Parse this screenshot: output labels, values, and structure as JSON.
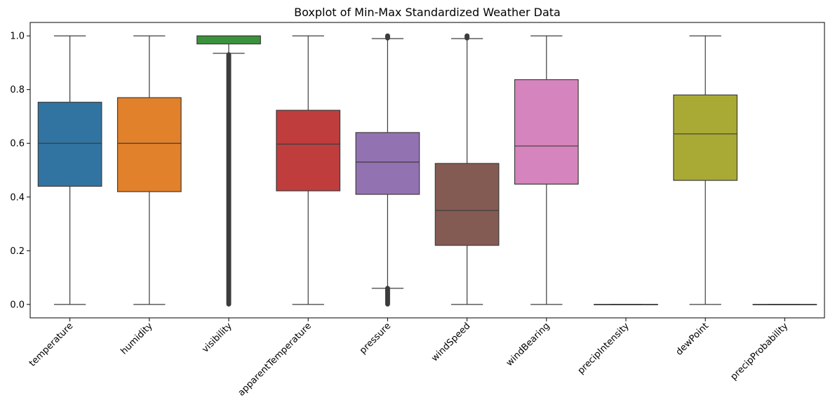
{
  "chart_data": {
    "type": "boxplot",
    "title": "Boxplot of Min-Max Standardized Weather Data",
    "xlabel": "",
    "ylabel": "",
    "ylim": [
      -0.05,
      1.05
    ],
    "yticks": [
      0.0,
      0.2,
      0.4,
      0.6,
      0.8,
      1.0
    ],
    "ytick_labels": [
      "0.0",
      "0.2",
      "0.4",
      "0.6",
      "0.8",
      "1.0"
    ],
    "grid": false,
    "categories": [
      "temperature",
      "humidity",
      "visibility",
      "apparentTemperature",
      "pressure",
      "windSpeed",
      "windBearing",
      "precipIntensity",
      "dewPoint",
      "precipProbability"
    ],
    "boxes": [
      {
        "category": "temperature",
        "color": "#3274a1",
        "whisker_low": 0.0,
        "q1": 0.44,
        "median": 0.6,
        "q3": 0.753,
        "whisker_high": 1.0,
        "fliers": []
      },
      {
        "category": "humidity",
        "color": "#e1812c",
        "whisker_low": 0.0,
        "q1": 0.42,
        "median": 0.6,
        "q3": 0.77,
        "whisker_high": 1.0,
        "fliers": []
      },
      {
        "category": "visibility",
        "color": "#3a923a",
        "whisker_low": 0.935,
        "q1": 0.97,
        "median": 1.0,
        "q3": 1.0,
        "whisker_high": 1.0,
        "flier_range": [
          0.0,
          0.93
        ]
      },
      {
        "category": "apparentTemperature",
        "color": "#c03d3e",
        "whisker_low": 0.0,
        "q1": 0.423,
        "median": 0.597,
        "q3": 0.723,
        "whisker_high": 1.0,
        "fliers": []
      },
      {
        "category": "pressure",
        "color": "#9372b2",
        "whisker_low": 0.06,
        "q1": 0.41,
        "median": 0.53,
        "q3": 0.64,
        "whisker_high": 0.99,
        "flier_low_range": [
          0.0,
          0.06
        ],
        "flier_high_range": [
          0.99,
          1.0
        ]
      },
      {
        "category": "windSpeed",
        "color": "#845b53",
        "whisker_low": 0.0,
        "q1": 0.22,
        "median": 0.35,
        "q3": 0.525,
        "whisker_high": 0.99,
        "flier_high_range": [
          0.99,
          1.0
        ]
      },
      {
        "category": "windBearing",
        "color": "#d684bd",
        "whisker_low": 0.0,
        "q1": 0.448,
        "median": 0.59,
        "q3": 0.837,
        "whisker_high": 1.0,
        "fliers": []
      },
      {
        "category": "precipIntensity",
        "color": "#7f7f7f",
        "whisker_low": 0.0,
        "q1": 0.0,
        "median": 0.0,
        "q3": 0.0,
        "whisker_high": 0.0,
        "fliers": []
      },
      {
        "category": "dewPoint",
        "color": "#a9aa35",
        "whisker_low": 0.0,
        "q1": 0.462,
        "median": 0.635,
        "q3": 0.78,
        "whisker_high": 1.0,
        "fliers": []
      },
      {
        "category": "precipProbability",
        "color": "#2fbfd0",
        "whisker_low": 0.0,
        "q1": 0.0,
        "median": 0.0,
        "q3": 0.0,
        "whisker_high": 0.0,
        "fliers": []
      }
    ]
  }
}
